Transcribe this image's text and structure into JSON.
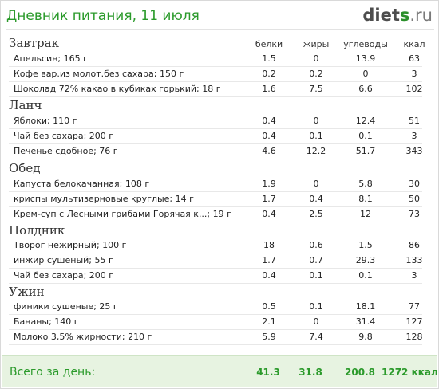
{
  "header": {
    "title": "Дневник питания, 11 июля",
    "logo_part1": "diet",
    "logo_part2": "s",
    "logo_part3": ".ru"
  },
  "columns": [
    "белки",
    "жиры",
    "углеводы",
    "ккал"
  ],
  "meals": [
    {
      "name": "Завтрак",
      "items": [
        {
          "name": "Апельсин; 165 г",
          "protein": "1.5",
          "fat": "0",
          "carbs": "13.9",
          "kcal": "63"
        },
        {
          "name": "Кофе вар.из молот.без сахара; 150 г",
          "protein": "0.2",
          "fat": "0.2",
          "carbs": "0",
          "kcal": "3"
        },
        {
          "name": "Шоколад 72% какао в кубиках горький; 18 г",
          "protein": "1.6",
          "fat": "7.5",
          "carbs": "6.6",
          "kcal": "102"
        }
      ]
    },
    {
      "name": "Ланч",
      "items": [
        {
          "name": "Яблоки; 110 г",
          "protein": "0.4",
          "fat": "0",
          "carbs": "12.4",
          "kcal": "51"
        },
        {
          "name": "Чай без сахара; 200 г",
          "protein": "0.4",
          "fat": "0.1",
          "carbs": "0.1",
          "kcal": "3"
        },
        {
          "name": "Печенье сдобное; 76 г",
          "protein": "4.6",
          "fat": "12.2",
          "carbs": "51.7",
          "kcal": "343"
        }
      ]
    },
    {
      "name": "Обед",
      "items": [
        {
          "name": "Капуста белокачанная; 108 г",
          "protein": "1.9",
          "fat": "0",
          "carbs": "5.8",
          "kcal": "30"
        },
        {
          "name": "криспы мультизерновые круглые; 14 г",
          "protein": "1.7",
          "fat": "0.4",
          "carbs": "8.1",
          "kcal": "50"
        },
        {
          "name": "Крем-суп с Лесными грибами Горячая к...; 19 г",
          "protein": "0.4",
          "fat": "2.5",
          "carbs": "12",
          "kcal": "73"
        }
      ]
    },
    {
      "name": "Полдник",
      "items": [
        {
          "name": "Творог нежирный; 100 г",
          "protein": "18",
          "fat": "0.6",
          "carbs": "1.5",
          "kcal": "86"
        },
        {
          "name": "инжир сушеный; 55 г",
          "protein": "1.7",
          "fat": "0.7",
          "carbs": "29.3",
          "kcal": "133"
        },
        {
          "name": "Чай без сахара; 200 г",
          "protein": "0.4",
          "fat": "0.1",
          "carbs": "0.1",
          "kcal": "3"
        }
      ]
    },
    {
      "name": "Ужин",
      "items": [
        {
          "name": "финики сушеные; 25 г",
          "protein": "0.5",
          "fat": "0.1",
          "carbs": "18.1",
          "kcal": "77"
        },
        {
          "name": "Бананы; 140 г",
          "protein": "2.1",
          "fat": "0",
          "carbs": "31.4",
          "kcal": "127"
        },
        {
          "name": "Молоко 3,5% жирности; 210 г",
          "protein": "5.9",
          "fat": "7.4",
          "carbs": "9.8",
          "kcal": "128"
        }
      ]
    }
  ],
  "totals": {
    "label": "Всего за день:",
    "protein": "41.3",
    "fat": "31.8",
    "carbs": "200.8",
    "kcal": "1272 ккал"
  },
  "colors": {
    "accent_green": "#2b9a2b",
    "footer_bg": "#e7f3e1"
  }
}
